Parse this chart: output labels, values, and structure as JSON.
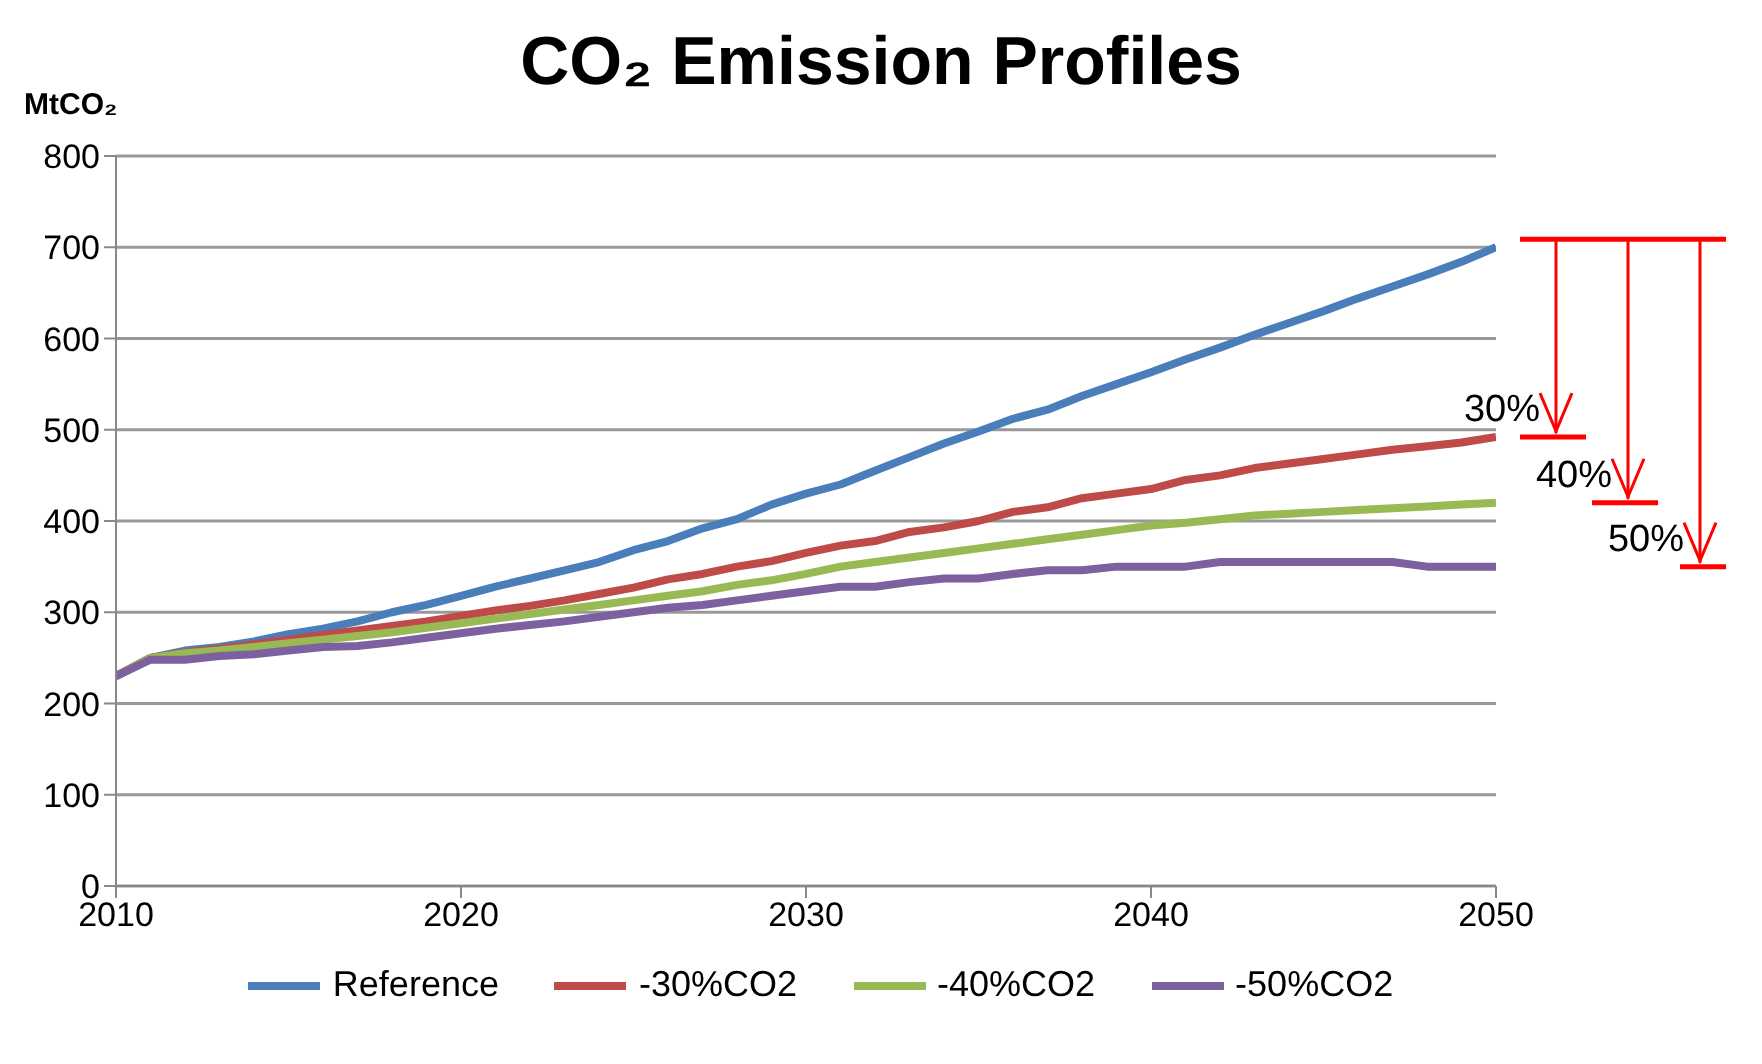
{
  "chart_data": {
    "type": "line",
    "title": "CO₂ Emission Profiles",
    "ylabel": "MtCO₂",
    "x": [
      2010,
      2011,
      2012,
      2013,
      2014,
      2015,
      2016,
      2017,
      2018,
      2019,
      2020,
      2021,
      2022,
      2023,
      2024,
      2025,
      2026,
      2027,
      2028,
      2029,
      2030,
      2031,
      2032,
      2033,
      2034,
      2035,
      2036,
      2037,
      2038,
      2039,
      2040,
      2041,
      2042,
      2043,
      2044,
      2045,
      2046,
      2047,
      2048,
      2049,
      2050
    ],
    "series": [
      {
        "name": "Reference",
        "color": "#4a7ebb",
        "values": [
          230,
          250,
          258,
          262,
          268,
          276,
          282,
          290,
          300,
          308,
          318,
          328,
          337,
          346,
          355,
          368,
          378,
          392,
          402,
          418,
          430,
          440,
          455,
          470,
          485,
          498,
          512,
          522,
          537,
          550,
          563,
          577,
          590,
          604,
          617,
          630,
          644,
          657,
          670,
          684,
          700
        ]
      },
      {
        "name": "-30%CO2",
        "color": "#be4b48",
        "values": [
          230,
          250,
          256,
          260,
          265,
          270,
          275,
          280,
          285,
          290,
          296,
          302,
          307,
          313,
          320,
          327,
          336,
          342,
          350,
          356,
          365,
          373,
          378,
          388,
          393,
          400,
          410,
          415,
          425,
          430,
          435,
          445,
          450,
          458,
          463,
          468,
          473,
          478,
          482,
          486,
          492
        ]
      },
      {
        "name": "-40%CO2",
        "color": "#98b954",
        "values": [
          230,
          250,
          255,
          258,
          262,
          266,
          270,
          274,
          278,
          283,
          288,
          293,
          298,
          303,
          308,
          313,
          318,
          323,
          330,
          335,
          342,
          350,
          355,
          360,
          365,
          370,
          375,
          380,
          385,
          390,
          395,
          398,
          402,
          406,
          408,
          410,
          412,
          414,
          416,
          418,
          420
        ]
      },
      {
        "name": "-50%CO2",
        "color": "#7d60a0",
        "values": [
          230,
          248,
          248,
          252,
          254,
          258,
          262,
          263,
          267,
          272,
          277,
          282,
          286,
          290,
          295,
          300,
          305,
          308,
          313,
          318,
          323,
          328,
          328,
          333,
          337,
          337,
          342,
          346,
          346,
          350,
          350,
          350,
          355,
          355,
          355,
          355,
          355,
          355,
          350,
          350,
          350
        ]
      }
    ],
    "xlim": [
      2010,
      2050
    ],
    "xticks": [
      2010,
      2020,
      2030,
      2040,
      2050
    ],
    "ylim": [
      0,
      800
    ],
    "yticks": [
      0,
      100,
      200,
      300,
      400,
      500,
      600,
      700,
      800
    ],
    "grid": "y",
    "legend": "bottom",
    "marker": "none",
    "line_style": "solid",
    "annotations": [
      "30%",
      "40%",
      "50%"
    ]
  }
}
